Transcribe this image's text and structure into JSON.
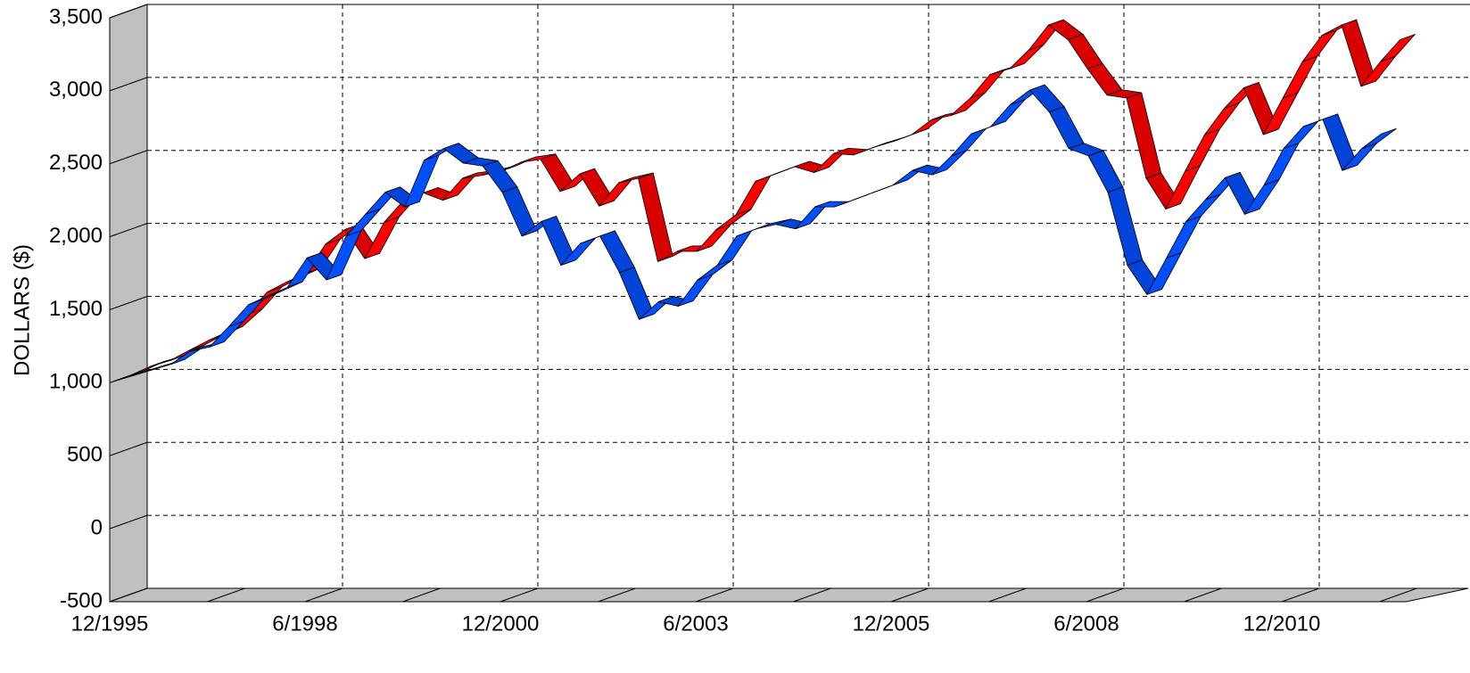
{
  "chart_data": {
    "type": "ribbon3d",
    "y_label": "DOLLARS ($)",
    "categories": [
      "12/1995",
      null,
      null,
      null,
      null,
      null,
      null,
      null,
      null,
      null,
      "6/1998",
      null,
      null,
      null,
      null,
      null,
      null,
      null,
      null,
      null,
      "12/2000",
      null,
      null,
      null,
      null,
      null,
      null,
      null,
      null,
      null,
      "6/2003",
      null,
      null,
      null,
      null,
      null,
      null,
      null,
      null,
      null,
      "12/2005",
      null,
      null,
      null,
      null,
      null,
      null,
      null,
      null,
      null,
      "6/2008",
      null,
      null,
      null,
      null,
      null,
      null,
      null,
      null,
      null,
      "12/2010",
      null,
      null,
      null,
      null,
      null
    ],
    "ylim": [
      -500,
      3500
    ],
    "yticks": [
      -500,
      0,
      500,
      {
        "value": 1000,
        "label": "1,000"
      },
      {
        "value": 1500,
        "label": "1,500"
      },
      {
        "value": 2000,
        "label": "2,000"
      },
      {
        "value": 2500,
        "label": "2,500"
      },
      {
        "value": 3000,
        "label": "3,000"
      },
      {
        "value": 3500,
        "label": "3,500"
      }
    ],
    "grid": true,
    "series": [
      {
        "color": "#ff0000",
        "values": [
          1000,
          1060,
          1100,
          1170,
          1240,
          1300,
          1420,
          1570,
          1640,
          1700,
          1900,
          2000,
          1800,
          2050,
          2200,
          2250,
          2200,
          2350,
          2370,
          2400,
          2460,
          2480,
          2260,
          2380,
          2160,
          2320,
          2350,
          1780,
          1850,
          1850,
          2000,
          2100,
          2330,
          2380,
          2430,
          2390,
          2520,
          2510,
          2560,
          2600,
          2650,
          2750,
          2780,
          2900,
          3060,
          3100,
          3230,
          3400,
          3300,
          3100,
          2920,
          2900,
          2350,
          2140,
          2400,
          2650,
          2830,
          2970,
          2650,
          2900,
          3150,
          3330,
          3400,
          2980,
          3150,
          3300
        ]
      },
      {
        "color": "#0050ff",
        "values": [
          1000,
          1040,
          1080,
          1120,
          1210,
          1240,
          1380,
          1530,
          1590,
          1650,
          1850,
          1700,
          2000,
          2150,
          2300,
          2200,
          2520,
          2600,
          2500,
          2480,
          2300,
          2000,
          2100,
          1800,
          1950,
          2000,
          1750,
          1430,
          1550,
          1520,
          1700,
          1800,
          2000,
          2050,
          2080,
          2050,
          2200,
          2200,
          2250,
          2300,
          2350,
          2450,
          2420,
          2550,
          2700,
          2750,
          2900,
          3000,
          2850,
          2600,
          2550,
          2300,
          1800,
          1600,
          1850,
          2100,
          2250,
          2400,
          2150,
          2350,
          2600,
          2750,
          2800,
          2450,
          2600,
          2700
        ]
      }
    ]
  }
}
